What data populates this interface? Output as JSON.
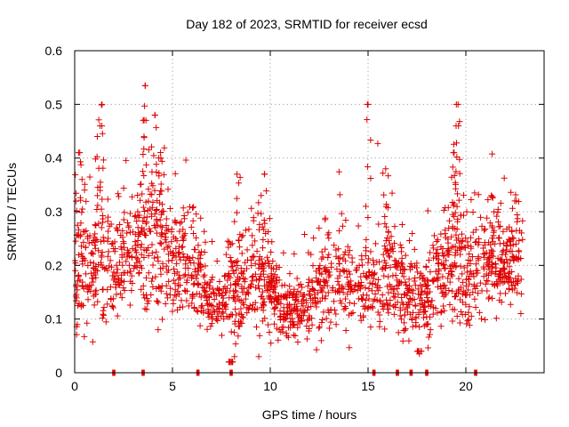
{
  "chart_data": {
    "type": "scatter",
    "title": "Day 182 of 2023, SRMTID for receiver ecsd",
    "xlabel": "GPS time / hours",
    "ylabel": "SRMTID / TECUs",
    "xlim": [
      0,
      24
    ],
    "ylim": [
      0,
      0.6
    ],
    "x_ticks": [
      0,
      5,
      10,
      15,
      20
    ],
    "y_ticks": [
      0,
      0.1,
      0.2,
      0.3,
      0.4,
      0.5,
      0.6
    ],
    "x_tick_labels": [
      "0",
      "5",
      "10",
      "15",
      "20"
    ],
    "y_tick_labels": [
      "0",
      "0.1",
      "0.2",
      "0.3",
      "0.4",
      "0.5",
      "0.6"
    ],
    "grid": true,
    "marker": "+",
    "color": "#e00000",
    "series": [
      {
        "name": "SRMTID",
        "profile": [
          {
            "x": 0.0,
            "mean": 0.16,
            "spread": 0.05
          },
          {
            "x": 0.3,
            "mean": 0.22,
            "spread": 0.07
          },
          {
            "x": 0.8,
            "mean": 0.18,
            "spread": 0.05
          },
          {
            "x": 1.3,
            "mean": 0.22,
            "spread": 0.08
          },
          {
            "x": 2.0,
            "mean": 0.19,
            "spread": 0.05
          },
          {
            "x": 2.8,
            "mean": 0.22,
            "spread": 0.05
          },
          {
            "x": 3.5,
            "mean": 0.24,
            "spread": 0.07
          },
          {
            "x": 4.2,
            "mean": 0.25,
            "spread": 0.07
          },
          {
            "x": 5.0,
            "mean": 0.2,
            "spread": 0.05
          },
          {
            "x": 5.8,
            "mean": 0.21,
            "spread": 0.05
          },
          {
            "x": 6.5,
            "mean": 0.16,
            "spread": 0.04
          },
          {
            "x": 7.2,
            "mean": 0.12,
            "spread": 0.03
          },
          {
            "x": 8.0,
            "mean": 0.15,
            "spread": 0.05
          },
          {
            "x": 9.0,
            "mean": 0.17,
            "spread": 0.05
          },
          {
            "x": 9.8,
            "mean": 0.17,
            "spread": 0.05
          },
          {
            "x": 10.5,
            "mean": 0.13,
            "spread": 0.03
          },
          {
            "x": 11.0,
            "mean": 0.11,
            "spread": 0.025
          },
          {
            "x": 11.5,
            "mean": 0.12,
            "spread": 0.03
          },
          {
            "x": 12.5,
            "mean": 0.15,
            "spread": 0.04
          },
          {
            "x": 13.5,
            "mean": 0.18,
            "spread": 0.05
          },
          {
            "x": 14.5,
            "mean": 0.16,
            "spread": 0.04
          },
          {
            "x": 15.5,
            "mean": 0.18,
            "spread": 0.06
          },
          {
            "x": 16.5,
            "mean": 0.17,
            "spread": 0.05
          },
          {
            "x": 17.5,
            "mean": 0.13,
            "spread": 0.04
          },
          {
            "x": 18.5,
            "mean": 0.17,
            "spread": 0.05
          },
          {
            "x": 19.5,
            "mean": 0.21,
            "spread": 0.06
          },
          {
            "x": 20.2,
            "mean": 0.17,
            "spread": 0.05
          },
          {
            "x": 21.0,
            "mean": 0.19,
            "spread": 0.05
          },
          {
            "x": 22.0,
            "mean": 0.2,
            "spread": 0.05
          },
          {
            "x": 22.9,
            "mean": 0.22,
            "spread": 0.05
          }
        ],
        "peaks": [
          {
            "x": 0.2,
            "y": 0.41
          },
          {
            "x": 1.4,
            "y": 0.5
          },
          {
            "x": 1.3,
            "y": 0.46
          },
          {
            "x": 3.6,
            "y": 0.535
          },
          {
            "x": 3.5,
            "y": 0.47
          },
          {
            "x": 4.1,
            "y": 0.48
          },
          {
            "x": 4.3,
            "y": 0.4
          },
          {
            "x": 8.3,
            "y": 0.37
          },
          {
            "x": 9.7,
            "y": 0.37
          },
          {
            "x": 15.0,
            "y": 0.5
          },
          {
            "x": 15.9,
            "y": 0.38
          },
          {
            "x": 19.6,
            "y": 0.5
          },
          {
            "x": 19.5,
            "y": 0.46
          },
          {
            "x": 19.4,
            "y": 0.41
          },
          {
            "x": 21.3,
            "y": 0.33
          },
          {
            "x": 22.5,
            "y": 0.32
          },
          {
            "x": 8.0,
            "y": 0.02
          },
          {
            "x": 17.6,
            "y": 0.04
          }
        ],
        "zeros": [
          2.0,
          3.5,
          6.3,
          8.0,
          15.3,
          16.5,
          17.2,
          18.0,
          20.5
        ]
      }
    ]
  }
}
